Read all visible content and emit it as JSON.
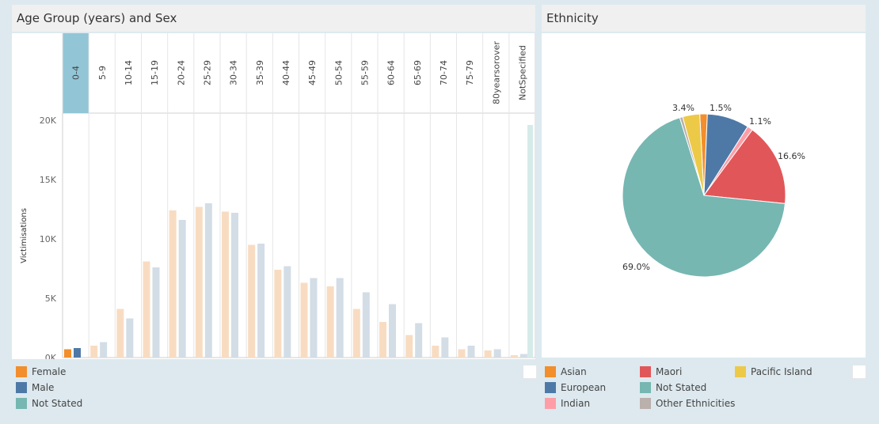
{
  "age_panel": {
    "title": "Age Group (years) and Sex"
  },
  "eth_panel": {
    "title": "Ethnicity"
  },
  "colors": {
    "female": "#f28e2b",
    "male": "#4e79a7",
    "not_stated": "#76b7b2",
    "female_faded": "#f8dcc2",
    "male_faded": "#d3dde6",
    "not_stated_faded": "#d5ebe9",
    "highlight": "#92c6d6"
  },
  "chart_data": [
    {
      "type": "bar",
      "title": "Age Group (years) and Sex",
      "xlabel": "",
      "ylabel": "Victimisations",
      "ylim": [
        0,
        20000
      ],
      "yticks": [
        "0K",
        "5K",
        "10K",
        "15K",
        "20K"
      ],
      "ytick_values": [
        0,
        5000,
        10000,
        15000,
        20000
      ],
      "selected_category": "0-4",
      "categories": [
        "0-4",
        "5-9",
        "10-14",
        "15-19",
        "20-24",
        "25-29",
        "30-34",
        "35-39",
        "40-44",
        "45-49",
        "50-54",
        "55-59",
        "60-64",
        "65-69",
        "70-74",
        "75-79",
        "80yearsorover",
        "NotSpecified"
      ],
      "series": [
        {
          "name": "Female",
          "values": [
            700,
            1000,
            4100,
            8100,
            12400,
            12700,
            12300,
            9500,
            7400,
            6300,
            6000,
            4100,
            3000,
            1900,
            1000,
            700,
            600,
            200
          ]
        },
        {
          "name": "Male",
          "values": [
            800,
            1300,
            3300,
            7600,
            11600,
            13000,
            12200,
            9600,
            7700,
            6700,
            6700,
            5500,
            4500,
            2900,
            1700,
            1000,
            700,
            300
          ]
        },
        {
          "name": "Not Stated",
          "values": [
            0,
            0,
            0,
            0,
            0,
            0,
            0,
            0,
            0,
            0,
            0,
            0,
            0,
            0,
            0,
            0,
            0,
            19600
          ]
        }
      ]
    },
    {
      "type": "pie",
      "title": "Ethnicity",
      "slices": [
        {
          "name": "Asian",
          "value": 1.5,
          "label": "1.5%",
          "color": "#f28e2b"
        },
        {
          "name": "European",
          "value": 8.4,
          "label": "",
          "color": "#4e79a7"
        },
        {
          "name": "Indian",
          "value": 1.1,
          "label": "1.1%",
          "color": "#ff9da7"
        },
        {
          "name": "Maori",
          "value": 16.6,
          "label": "16.6%",
          "color": "#e15759"
        },
        {
          "name": "Not Stated",
          "value": 69.0,
          "label": "69.0%",
          "color": "#76b7b2"
        },
        {
          "name": "Other Ethnicities",
          "value": 0.6,
          "label": "",
          "color": "#bab0ac"
        },
        {
          "name": "Pacific Island",
          "value": 3.4,
          "label": "3.4%",
          "color": "#edc948"
        }
      ]
    }
  ],
  "age_legend": [
    {
      "label": "Female",
      "color": "#f28e2b"
    },
    {
      "label": "Male",
      "color": "#4e79a7"
    },
    {
      "label": "Not Stated",
      "color": "#76b7b2"
    }
  ],
  "eth_legend": [
    {
      "label": "Asian",
      "color": "#f28e2b"
    },
    {
      "label": "European",
      "color": "#4e79a7"
    },
    {
      "label": "Indian",
      "color": "#ff9da7"
    },
    {
      "label": "Maori",
      "color": "#e15759"
    },
    {
      "label": "Not Stated",
      "color": "#76b7b2"
    },
    {
      "label": "Other Ethnicities",
      "color": "#bab0ac"
    },
    {
      "label": "Pacific Island",
      "color": "#edc948"
    }
  ]
}
